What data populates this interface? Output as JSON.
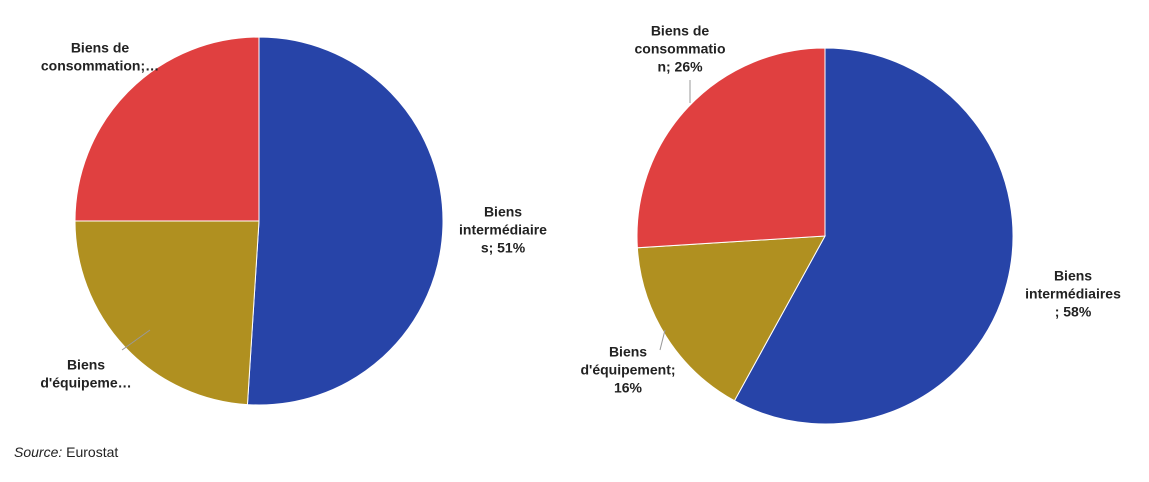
{
  "chart_data": [
    {
      "type": "pie",
      "values": [
        51,
        24,
        25
      ],
      "colors": [
        "#2744a8",
        "#b09020",
        "#e04040"
      ],
      "labels": [
        [
          "Biens",
          "intermédiaire",
          "s; 51%"
        ],
        [
          "Biens",
          "d'équipeme…"
        ],
        [
          "Biens de",
          "consommation;…"
        ]
      ]
    },
    {
      "type": "pie",
      "values": [
        58,
        16,
        26
      ],
      "colors": [
        "#2744a8",
        "#b09020",
        "#e04040"
      ],
      "labels": [
        [
          "Biens",
          "intermédiaires",
          "; 58%"
        ],
        [
          "Biens",
          "d'équipement;",
          "16%"
        ],
        [
          "Biens de",
          "consommatio",
          "n; 26%"
        ]
      ]
    }
  ],
  "source": {
    "label": "Source:",
    "text": "Eurostat"
  }
}
